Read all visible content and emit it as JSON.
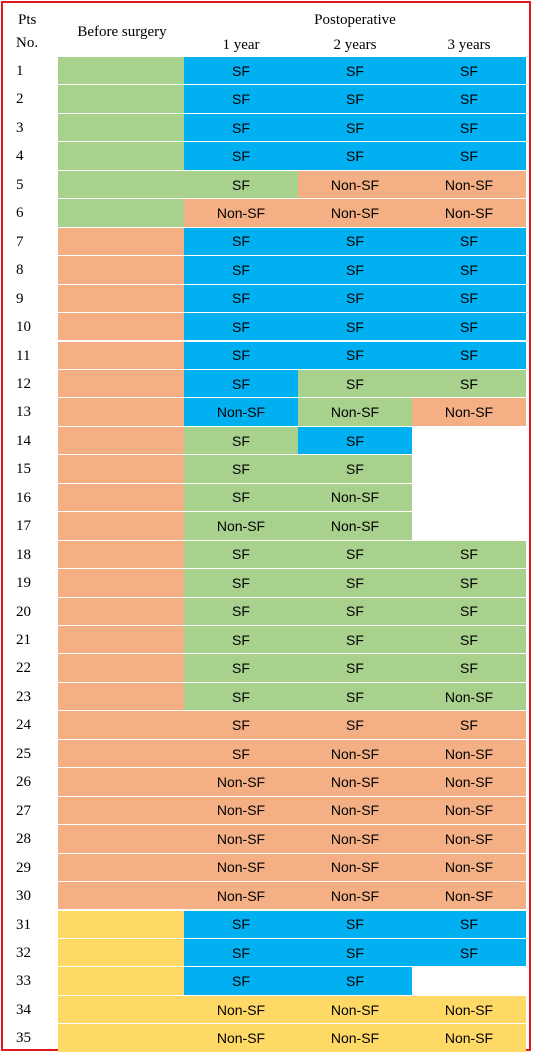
{
  "header": {
    "pts": "Pts",
    "no": "No.",
    "before": "Before surgery",
    "postoperative": "Postoperative",
    "years": [
      "1 year",
      "2 years",
      "3 years"
    ]
  },
  "colors": {
    "G": "#a9d18e",
    "O": "#f4b084",
    "B": "#00b0f0",
    "Y": "#ffd966",
    "W": "#ffffff",
    "border": "#e0191f"
  },
  "rows": [
    {
      "no": "1",
      "before": "G",
      "cells": [
        [
          "B",
          "SF"
        ],
        [
          "B",
          "SF"
        ],
        [
          "B",
          "SF"
        ]
      ]
    },
    {
      "no": "2",
      "before": "G",
      "cells": [
        [
          "B",
          "SF"
        ],
        [
          "B",
          "SF"
        ],
        [
          "B",
          "SF"
        ]
      ]
    },
    {
      "no": "3",
      "before": "G",
      "cells": [
        [
          "B",
          "SF"
        ],
        [
          "B",
          "SF"
        ],
        [
          "B",
          "SF"
        ]
      ]
    },
    {
      "no": "4",
      "before": "G",
      "cells": [
        [
          "B",
          "SF"
        ],
        [
          "B",
          "SF"
        ],
        [
          "B",
          "SF"
        ]
      ]
    },
    {
      "no": "5",
      "before": "G",
      "cells": [
        [
          "G",
          "SF"
        ],
        [
          "O",
          "Non-SF"
        ],
        [
          "O",
          "Non-SF"
        ]
      ]
    },
    {
      "no": "6",
      "before": "G",
      "cells": [
        [
          "O",
          "Non-SF"
        ],
        [
          "O",
          "Non-SF"
        ],
        [
          "O",
          "Non-SF"
        ]
      ]
    },
    {
      "no": "7",
      "before": "O",
      "cells": [
        [
          "B",
          "SF"
        ],
        [
          "B",
          "SF"
        ],
        [
          "B",
          "SF"
        ]
      ]
    },
    {
      "no": "8",
      "before": "O",
      "cells": [
        [
          "B",
          "SF"
        ],
        [
          "B",
          "SF"
        ],
        [
          "B",
          "SF"
        ]
      ]
    },
    {
      "no": "9",
      "before": "O",
      "cells": [
        [
          "B",
          "SF"
        ],
        [
          "B",
          "SF"
        ],
        [
          "B",
          "SF"
        ]
      ]
    },
    {
      "no": "10",
      "before": "O",
      "cells": [
        [
          "B",
          "SF"
        ],
        [
          "B",
          "SF"
        ],
        [
          "B",
          "SF"
        ]
      ]
    },
    {
      "no": "11",
      "before": "O",
      "cells": [
        [
          "B",
          "SF"
        ],
        [
          "B",
          "SF"
        ],
        [
          "B",
          "SF"
        ]
      ]
    },
    {
      "no": "12",
      "before": "O",
      "cells": [
        [
          "B",
          "SF"
        ],
        [
          "G",
          "SF"
        ],
        [
          "G",
          "SF"
        ]
      ]
    },
    {
      "no": "13",
      "before": "O",
      "cells": [
        [
          "B",
          "Non-SF"
        ],
        [
          "G",
          "Non-SF"
        ],
        [
          "O",
          "Non-SF"
        ]
      ]
    },
    {
      "no": "14",
      "before": "O",
      "cells": [
        [
          "G",
          "SF"
        ],
        [
          "B",
          "SF"
        ],
        [
          "W",
          ""
        ]
      ]
    },
    {
      "no": "15",
      "before": "O",
      "cells": [
        [
          "G",
          "SF"
        ],
        [
          "G",
          "SF"
        ],
        [
          "W",
          ""
        ]
      ]
    },
    {
      "no": "16",
      "before": "O",
      "cells": [
        [
          "G",
          "SF"
        ],
        [
          "G",
          "Non-SF"
        ],
        [
          "W",
          ""
        ]
      ]
    },
    {
      "no": "17",
      "before": "O",
      "cells": [
        [
          "G",
          "Non-SF"
        ],
        [
          "G",
          "Non-SF"
        ],
        [
          "W",
          ""
        ]
      ]
    },
    {
      "no": "18",
      "before": "O",
      "cells": [
        [
          "G",
          "SF"
        ],
        [
          "G",
          "SF"
        ],
        [
          "G",
          "SF"
        ]
      ]
    },
    {
      "no": "19",
      "before": "O",
      "cells": [
        [
          "G",
          "SF"
        ],
        [
          "G",
          "SF"
        ],
        [
          "G",
          "SF"
        ]
      ]
    },
    {
      "no": "20",
      "before": "O",
      "cells": [
        [
          "G",
          "SF"
        ],
        [
          "G",
          "SF"
        ],
        [
          "G",
          "SF"
        ]
      ]
    },
    {
      "no": "21",
      "before": "O",
      "cells": [
        [
          "G",
          "SF"
        ],
        [
          "G",
          "SF"
        ],
        [
          "G",
          "SF"
        ]
      ]
    },
    {
      "no": "22",
      "before": "O",
      "cells": [
        [
          "G",
          "SF"
        ],
        [
          "G",
          "SF"
        ],
        [
          "G",
          "SF"
        ]
      ]
    },
    {
      "no": "23",
      "before": "O",
      "cells": [
        [
          "G",
          "SF"
        ],
        [
          "G",
          "SF"
        ],
        [
          "G",
          "Non-SF"
        ]
      ]
    },
    {
      "no": "24",
      "before": "O",
      "cells": [
        [
          "O",
          "SF"
        ],
        [
          "O",
          "SF"
        ],
        [
          "O",
          "SF"
        ]
      ]
    },
    {
      "no": "25",
      "before": "O",
      "cells": [
        [
          "O",
          "SF"
        ],
        [
          "O",
          "Non-SF"
        ],
        [
          "O",
          "Non-SF"
        ]
      ]
    },
    {
      "no": "26",
      "before": "O",
      "cells": [
        [
          "O",
          "Non-SF"
        ],
        [
          "O",
          "Non-SF"
        ],
        [
          "O",
          "Non-SF"
        ]
      ]
    },
    {
      "no": "27",
      "before": "O",
      "cells": [
        [
          "O",
          "Non-SF"
        ],
        [
          "O",
          "Non-SF"
        ],
        [
          "O",
          "Non-SF"
        ]
      ]
    },
    {
      "no": "28",
      "before": "O",
      "cells": [
        [
          "O",
          "Non-SF"
        ],
        [
          "O",
          "Non-SF"
        ],
        [
          "O",
          "Non-SF"
        ]
      ]
    },
    {
      "no": "29",
      "before": "O",
      "cells": [
        [
          "O",
          "Non-SF"
        ],
        [
          "O",
          "Non-SF"
        ],
        [
          "O",
          "Non-SF"
        ]
      ]
    },
    {
      "no": "30",
      "before": "O",
      "cells": [
        [
          "O",
          "Non-SF"
        ],
        [
          "O",
          "Non-SF"
        ],
        [
          "O",
          "Non-SF"
        ]
      ]
    },
    {
      "no": "31",
      "before": "Y",
      "cells": [
        [
          "B",
          "SF"
        ],
        [
          "B",
          "SF"
        ],
        [
          "B",
          "SF"
        ]
      ]
    },
    {
      "no": "32",
      "before": "Y",
      "cells": [
        [
          "B",
          "SF"
        ],
        [
          "B",
          "SF"
        ],
        [
          "B",
          "SF"
        ]
      ]
    },
    {
      "no": "33",
      "before": "Y",
      "cells": [
        [
          "B",
          "SF"
        ],
        [
          "B",
          "SF"
        ],
        [
          "W",
          ""
        ]
      ]
    },
    {
      "no": "34",
      "before": "Y",
      "cells": [
        [
          "Y",
          "Non-SF"
        ],
        [
          "Y",
          "Non-SF"
        ],
        [
          "Y",
          "Non-SF"
        ]
      ]
    },
    {
      "no": "35",
      "before": "Y",
      "cells": [
        [
          "Y",
          "Non-SF"
        ],
        [
          "Y",
          "Non-SF"
        ],
        [
          "Y",
          "Non-SF"
        ]
      ]
    }
  ]
}
